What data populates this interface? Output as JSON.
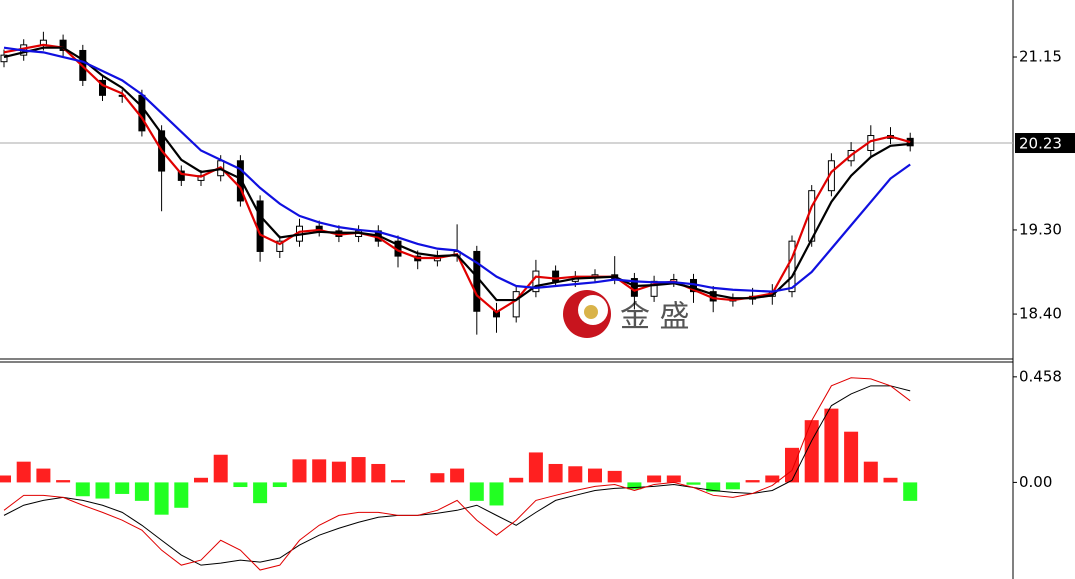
{
  "chart_data": [
    {
      "type": "candlestick",
      "open": [
        21.1,
        21.17,
        21.28,
        21.33,
        21.22,
        20.9,
        20.74,
        20.74,
        20.36,
        19.93,
        19.83,
        19.88,
        20.04,
        19.61,
        19.07,
        19.18,
        19.34,
        19.29,
        19.23,
        19.29,
        19.18,
        19.02,
        18.97,
        19.02,
        19.07,
        18.43,
        18.37,
        18.64,
        18.86,
        18.75,
        18.8,
        18.82,
        18.78,
        18.59,
        18.75,
        18.77,
        18.64,
        18.54,
        18.56,
        18.59,
        18.64,
        19.18,
        19.72,
        20.04,
        20.15,
        20.31,
        20.28
      ],
      "high": [
        21.23,
        21.34,
        21.42,
        21.39,
        21.28,
        20.96,
        20.8,
        20.8,
        20.42,
        19.99,
        19.94,
        20.1,
        20.1,
        19.67,
        19.24,
        19.42,
        19.4,
        19.35,
        19.35,
        19.35,
        19.24,
        19.08,
        19.08,
        19.36,
        19.13,
        18.52,
        18.7,
        18.98,
        18.92,
        18.86,
        18.88,
        19.02,
        18.84,
        18.81,
        18.83,
        18.83,
        18.7,
        18.62,
        18.68,
        18.72,
        19.24,
        19.78,
        20.12,
        20.24,
        20.42,
        20.4,
        20.34
      ],
      "low": [
        21.04,
        21.11,
        21.22,
        21.16,
        20.84,
        20.68,
        20.66,
        20.3,
        19.5,
        19.77,
        19.77,
        19.82,
        19.55,
        18.96,
        19.0,
        19.12,
        19.23,
        19.17,
        19.17,
        19.12,
        18.9,
        18.88,
        18.91,
        18.96,
        18.18,
        18.2,
        18.31,
        18.58,
        18.69,
        18.69,
        18.74,
        18.72,
        18.45,
        18.53,
        18.69,
        18.52,
        18.42,
        18.48,
        18.5,
        18.5,
        18.58,
        19.12,
        19.66,
        19.98,
        20.09,
        20.22,
        20.14
      ],
      "close": [
        21.17,
        21.28,
        21.33,
        21.22,
        20.9,
        20.74,
        20.74,
        20.36,
        19.93,
        19.83,
        19.88,
        20.04,
        19.61,
        19.07,
        19.18,
        19.34,
        19.29,
        19.23,
        19.29,
        19.18,
        19.02,
        18.97,
        19.02,
        19.07,
        18.43,
        18.37,
        18.64,
        18.86,
        18.75,
        18.8,
        18.82,
        18.78,
        18.59,
        18.75,
        18.77,
        18.64,
        18.54,
        18.56,
        18.59,
        18.64,
        19.18,
        19.72,
        20.04,
        20.15,
        20.31,
        20.28,
        20.2
      ],
      "series": [
        {
          "color": "#e00000",
          "values": [
            21.2,
            21.24,
            21.28,
            21.25,
            21.05,
            20.85,
            20.76,
            20.5,
            20.15,
            19.9,
            19.87,
            19.97,
            19.75,
            19.25,
            19.15,
            19.28,
            19.3,
            19.25,
            19.27,
            19.22,
            19.08,
            19.0,
            19.0,
            19.04,
            18.6,
            18.42,
            18.55,
            18.8,
            18.78,
            18.8,
            18.8,
            18.8,
            18.65,
            18.72,
            18.75,
            18.66,
            18.57,
            18.55,
            18.58,
            18.62,
            19.0,
            19.55,
            19.92,
            20.1,
            20.25,
            20.3,
            20.24
          ]
        },
        {
          "color": "#000000",
          "values": [
            21.15,
            21.2,
            21.25,
            21.25,
            21.12,
            20.95,
            20.82,
            20.62,
            20.33,
            20.05,
            19.92,
            19.95,
            19.85,
            19.45,
            19.22,
            19.25,
            19.28,
            19.27,
            19.27,
            19.24,
            19.14,
            19.05,
            19.02,
            19.03,
            18.8,
            18.55,
            18.55,
            18.7,
            18.74,
            18.78,
            18.79,
            18.8,
            18.7,
            18.71,
            18.73,
            18.68,
            18.61,
            18.57,
            18.57,
            18.6,
            18.8,
            19.2,
            19.6,
            19.88,
            20.08,
            20.2,
            20.22
          ]
        },
        {
          "color": "#1010e0",
          "values": [
            21.25,
            21.22,
            21.2,
            21.15,
            21.1,
            21.0,
            20.9,
            20.75,
            20.55,
            20.35,
            20.15,
            20.05,
            19.95,
            19.75,
            19.58,
            19.45,
            19.38,
            19.33,
            19.3,
            19.28,
            19.22,
            19.15,
            19.1,
            19.08,
            18.95,
            18.8,
            18.7,
            18.68,
            18.7,
            18.72,
            18.74,
            18.77,
            18.75,
            18.74,
            18.74,
            18.72,
            18.68,
            18.66,
            18.65,
            18.64,
            18.68,
            18.85,
            19.1,
            19.35,
            19.6,
            19.85,
            20.0
          ]
        }
      ],
      "ylim": [
        17.93,
        21.76
      ],
      "yticks": [
        21.15,
        {
          "value": 19.3,
          "label": "19.30"
        },
        {
          "value": 18.4,
          "label": "18.40"
        }
      ],
      "last_price": 20.23,
      "watermark": "金 盛"
    },
    {
      "type": "macd",
      "values": [
        0.03,
        0.09,
        0.06,
        0.01,
        -0.06,
        -0.07,
        -0.05,
        -0.08,
        -0.14,
        -0.11,
        0.02,
        0.12,
        -0.02,
        -0.09,
        -0.02,
        0.1,
        0.1,
        0.09,
        0.11,
        0.08,
        0.01,
        0.0,
        0.04,
        0.06,
        -0.08,
        -0.1,
        0.02,
        0.13,
        0.08,
        0.07,
        0.06,
        0.05,
        -0.03,
        0.03,
        0.03,
        -0.01,
        -0.04,
        -0.03,
        0.01,
        0.03,
        0.15,
        0.27,
        0.32,
        0.22,
        0.09,
        0.02,
        -0.08
      ],
      "positive_color": "#ff2020",
      "negative_color": "#22ff22",
      "series": [
        {
          "color": "#000000",
          "values": [
            -0.143,
            -0.099,
            -0.078,
            -0.065,
            -0.078,
            -0.099,
            -0.13,
            -0.186,
            -0.251,
            -0.315,
            -0.359,
            -0.35,
            -0.337,
            -0.346,
            -0.328,
            -0.272,
            -0.229,
            -0.199,
            -0.173,
            -0.151,
            -0.143,
            -0.143,
            -0.134,
            -0.121,
            -0.099,
            -0.143,
            -0.186,
            -0.13,
            -0.078,
            -0.056,
            -0.035,
            -0.026,
            -0.022,
            -0.017,
            -0.009,
            -0.022,
            -0.035,
            -0.043,
            -0.048,
            -0.035,
            0.009,
            0.181,
            0.333,
            0.384,
            0.419,
            0.419,
            0.397
          ]
        },
        {
          "color": "#e00000",
          "values": [
            -0.121,
            -0.056,
            -0.056,
            -0.065,
            -0.099,
            -0.13,
            -0.164,
            -0.207,
            -0.294,
            -0.359,
            -0.337,
            -0.251,
            -0.294,
            -0.38,
            -0.359,
            -0.251,
            -0.186,
            -0.143,
            -0.13,
            -0.13,
            -0.143,
            -0.143,
            -0.121,
            -0.078,
            -0.164,
            -0.229,
            -0.164,
            -0.078,
            -0.056,
            -0.035,
            -0.017,
            -0.009,
            -0.035,
            -0.009,
            0,
            -0.022,
            -0.056,
            -0.065,
            -0.048,
            -0.013,
            0.052,
            0.268,
            0.419,
            0.454,
            0.449,
            0.419,
            0.354
          ]
        }
      ],
      "ylim": [
        -0.419,
        0.518
      ],
      "yticks": [
        0.458,
        {
          "value": 0,
          "label": "0.00"
        }
      ]
    }
  ]
}
